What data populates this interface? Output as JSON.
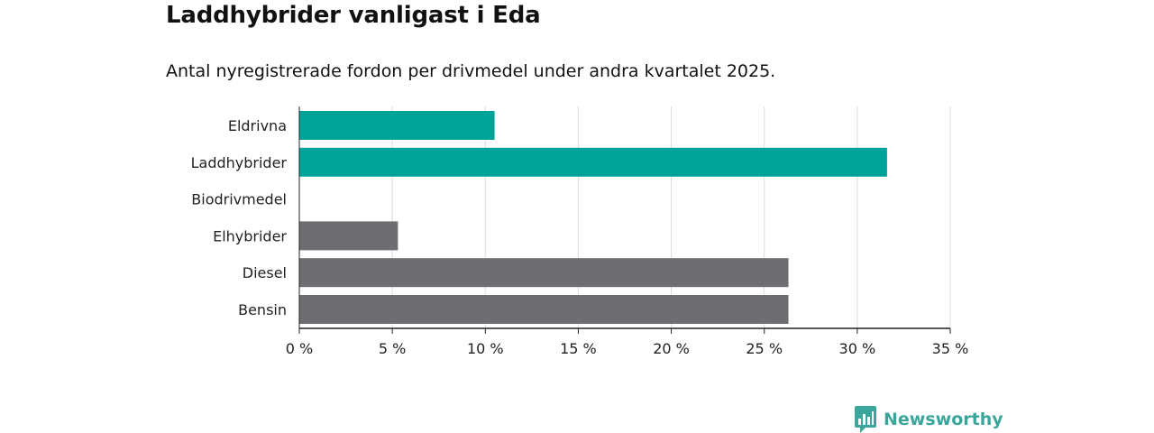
{
  "title": "Laddhybrider vanligast i Eda",
  "subtitle": "Antal nyregistrerade fordon per drivmedel under andra kvartalet 2025.",
  "brand": {
    "name": "Newsworthy",
    "color": "#3aa69b",
    "icon": "bar-chart-speech-bubble-icon"
  },
  "colors": {
    "highlight": "#00a398",
    "default": "#6e6d72",
    "grid": "#dcdcdc",
    "axis": "#222222"
  },
  "chart_data": {
    "type": "bar",
    "orientation": "horizontal",
    "categories": [
      "Eldrivna",
      "Laddhybrider",
      "Biodrivmedel",
      "Elhybrider",
      "Diesel",
      "Bensin"
    ],
    "values": [
      10.5,
      31.6,
      0,
      5.3,
      26.3,
      26.3
    ],
    "highlighted": [
      true,
      true,
      false,
      false,
      false,
      false
    ],
    "xlim": [
      0,
      35
    ],
    "xticks": [
      0,
      5,
      10,
      15,
      20,
      25,
      30,
      35
    ],
    "xtick_labels": [
      "0 %",
      "5 %",
      "10 %",
      "15 %",
      "20 %",
      "25 %",
      "30 %",
      "35 %"
    ],
    "grid": true
  }
}
